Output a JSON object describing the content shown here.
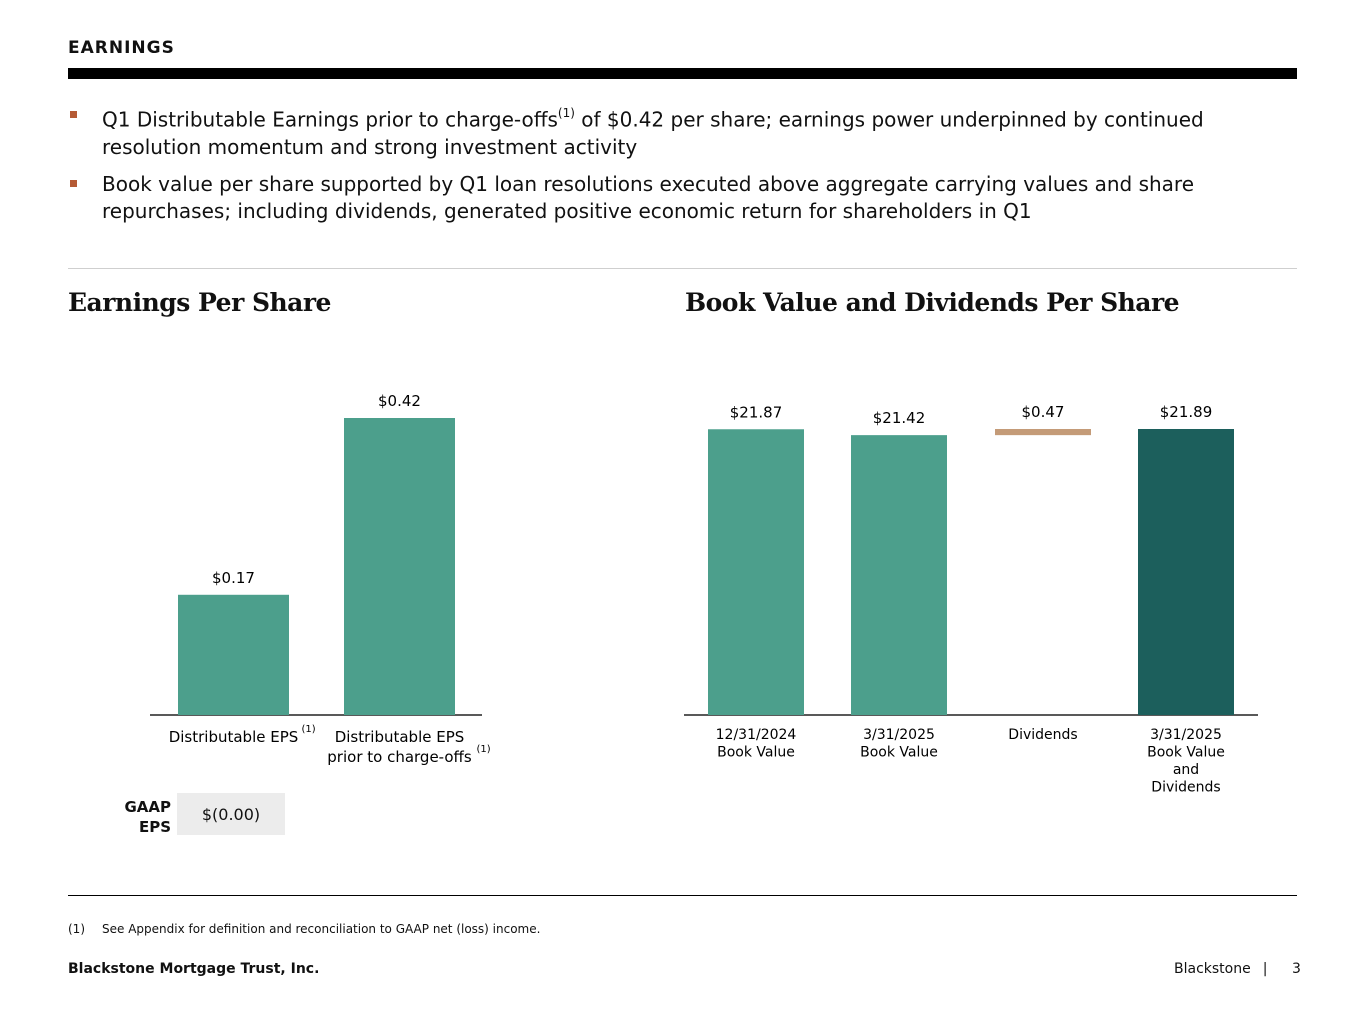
{
  "header": {
    "section_title": "EARNINGS"
  },
  "bullets": [
    {
      "before": "Q1 Distributable Earnings prior to charge-offs",
      "sup": "(1)",
      "after": " of $0.42 per share; earnings power underpinned by continued resolution momentum and strong investment activity"
    },
    {
      "before": "Book value per share supported by Q1 loan resolutions executed above aggregate carrying values and share repurchases; including dividends, generated positive economic return for shareholders in Q1",
      "sup": "",
      "after": ""
    }
  ],
  "colors": {
    "teal": "#4c9f8c",
    "dark_teal": "#1c5f5c",
    "tan": "#c49b78",
    "bullet": "#b55a35"
  },
  "chart_data": [
    {
      "type": "bar",
      "title": "Earnings Per Share",
      "categories": [
        {
          "lines": [
            "Distributable EPS"
          ],
          "sup": "(1)"
        },
        {
          "lines": [
            "Distributable EPS",
            "prior to charge-offs"
          ],
          "sup": "(1)"
        }
      ],
      "values": [
        0.17,
        0.42
      ],
      "labels": [
        "$0.17",
        "$0.42"
      ],
      "ylim": [
        0,
        0.42
      ],
      "gaap": {
        "label_line1": "GAAP",
        "label_line2": "EPS",
        "value": "$(0.00)"
      }
    },
    {
      "type": "bar",
      "title": "Book Value and Dividends Per Share",
      "categories": [
        {
          "lines": [
            "12/31/2024",
            "Book Value"
          ]
        },
        {
          "lines": [
            "3/31/2025",
            "Book Value"
          ]
        },
        {
          "lines": [
            "Dividends"
          ]
        },
        {
          "lines": [
            "3/31/2025",
            "Book Value",
            "and",
            "Dividends"
          ]
        }
      ],
      "values": [
        21.87,
        21.42,
        0.47,
        21.89
      ],
      "base": [
        0,
        0,
        21.42,
        0
      ],
      "labels": [
        "$21.87",
        "$21.42",
        "$0.47",
        "$21.89"
      ],
      "colors": [
        "teal",
        "teal",
        "tan",
        "dark_teal"
      ],
      "ylim": [
        0,
        21.89
      ]
    }
  ],
  "footer": {
    "footnote_num": "(1)",
    "footnote_text": "See Appendix for definition and reconciliation to GAAP net (loss) income.",
    "company": "Blackstone Mortgage Trust, Inc.",
    "brand": "Blackstone",
    "separator": "|",
    "page_number": "3"
  }
}
